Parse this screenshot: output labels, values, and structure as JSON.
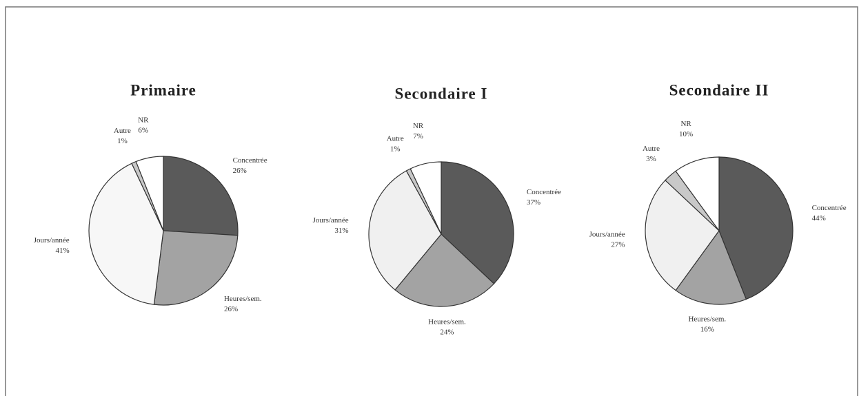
{
  "chart_data": [
    {
      "type": "pie",
      "title": "Primaire",
      "categories": [
        "Concentrée",
        "Heures/sem.",
        "Jours/année",
        "Autre",
        "NR"
      ],
      "values": [
        26,
        26,
        41,
        1,
        6
      ],
      "value_labels": [
        "26%",
        "26%",
        "41%",
        "1%",
        "6%"
      ],
      "colors": [
        "#5a5a5a",
        "#a3a3a3",
        "#f7f7f7",
        "#c8c8c8",
        "#ffffff"
      ]
    },
    {
      "type": "pie",
      "title": "Secondaire I",
      "categories": [
        "Concentrée",
        "Heures/sem.",
        "Jours/année",
        "Autre",
        "NR"
      ],
      "values": [
        37,
        24,
        31,
        1,
        7
      ],
      "value_labels": [
        "37%",
        "24%",
        "31%",
        "1%",
        "7%"
      ],
      "colors": [
        "#5a5a5a",
        "#a3a3a3",
        "#f0f0f0",
        "#c8c8c8",
        "#ffffff"
      ]
    },
    {
      "type": "pie",
      "title": "Secondaire II",
      "categories": [
        "Concentrée",
        "Heures/sem.",
        "Jours/année",
        "Autre",
        "NR"
      ],
      "values": [
        44,
        16,
        27,
        3,
        10
      ],
      "value_labels": [
        "44%",
        "16%",
        "27%",
        "3%",
        "10%"
      ],
      "colors": [
        "#5a5a5a",
        "#a3a3a3",
        "#f0f0f0",
        "#c8c8c8",
        "#ffffff"
      ]
    }
  ]
}
